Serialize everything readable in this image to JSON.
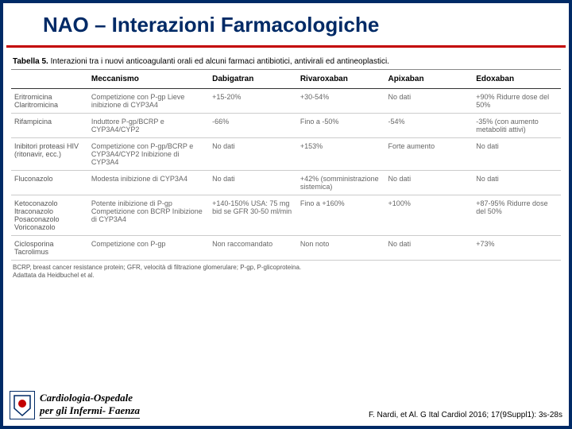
{
  "title": "NAO – Interazioni Farmacologiche",
  "caption_bold": "Tabella 5.",
  "caption_rest": " Interazioni tra i nuovi anticoagulanti orali ed alcuni farmaci antibiotici, antivirali ed antineoplastici.",
  "columns": [
    "",
    "Meccanismo",
    "Dabigatran",
    "Rivaroxaban",
    "Apixaban",
    "Edoxaban"
  ],
  "rows": [
    {
      "drug": "Eritromicina Claritromicina",
      "mech": "Competizione con P-gp Lieve inibizione di CYP3A4",
      "dab": "+15-20%",
      "riv": "+30-54%",
      "api": "No dati",
      "edo": "+90% Ridurre dose del 50%"
    },
    {
      "drug": "Rifampicina",
      "mech": "Induttore P-gp/BCRP e CYP3A4/CYP2",
      "dab": "-66%",
      "riv": "Fino a -50%",
      "api": "-54%",
      "edo": "-35% (con aumento metaboliti attivi)"
    },
    {
      "drug": "Inibitori proteasi HIV (ritonavir, ecc.)",
      "mech": "Competizione con P-gp/BCRP e CYP3A4/CYP2 Inibizione di CYP3A4",
      "dab": "No dati",
      "riv": "+153%",
      "api": "Forte aumento",
      "edo": "No dati"
    },
    {
      "drug": "Fluconazolo",
      "mech": "Modesta inibizione di CYP3A4",
      "dab": "No dati",
      "riv": "+42% (somministrazione sistemica)",
      "api": "No dati",
      "edo": "No dati"
    },
    {
      "drug": "Ketoconazolo Itraconazolo Posaconazolo Voriconazolo",
      "mech": "Potente inibizione di P-gp Competizione con BCRP Inibizione di CYP3A4",
      "dab": "+140-150% USA: 75 mg bid se GFR 30-50 ml/min",
      "riv": "Fino a +160%",
      "api": "+100%",
      "edo": "+87-95% Ridurre dose del 50%"
    },
    {
      "drug": "Ciclosporina Tacrolimus",
      "mech": "Competizione con P-gp",
      "dab": "Non raccomandato",
      "riv": "Non noto",
      "api": "No dati",
      "edo": "+73%"
    }
  ],
  "footnote1": "BCRP, breast cancer resistance protein; GFR, velocità di filtrazione glomerulare; P-gp, P-glicoproteina.",
  "footnote2": "Adattata da Heidbuchel et al.",
  "dept_line1": "Cardiologia-Ospedale",
  "dept_line2": "per gli Infermi- Faenza",
  "citation": "F. Nardi, et Al. G Ital Cardiol 2016; 17(9Suppl1): 3s-28s",
  "colors": {
    "border": "#002a66",
    "redline": "#c30000",
    "title": "#002a66",
    "text": "#666666"
  }
}
